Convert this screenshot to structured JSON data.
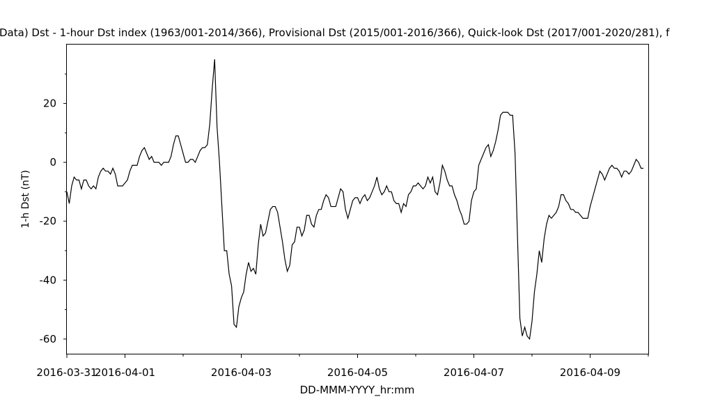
{
  "chart_data": {
    "type": "line",
    "title": "Data)  Dst - 1-hour Dst index (1963/001-2014/366), Provisional Dst (2015/001-2016/366), Quick-look Dst (2017/001-2020/281), f",
    "xlabel": "DD-MMM-YYYY_hr:mm",
    "ylabel": "1-h Dst (nT)",
    "ylim": [
      -65,
      40
    ],
    "xlim": [
      "2016-03-31T00:00",
      "2016-04-10T00:00"
    ],
    "grid": false,
    "y_ticks": [
      {
        "value": 20,
        "label": "20"
      },
      {
        "value": 0,
        "label": "0"
      },
      {
        "value": -20,
        "label": "-20"
      },
      {
        "value": -40,
        "label": "-40"
      },
      {
        "value": -60,
        "label": "-60"
      }
    ],
    "y_minor_ticks": [
      30,
      10,
      -10,
      -30,
      -50
    ],
    "x_ticks": [
      {
        "value": "2016-03-31",
        "label": "2016-03-31"
      },
      {
        "value": "2016-04-01",
        "label": "2016-04-01"
      },
      {
        "value": "2016-04-03",
        "label": "2016-04-03"
      },
      {
        "value": "2016-04-05",
        "label": "2016-04-05"
      },
      {
        "value": "2016-04-07",
        "label": "2016-04-07"
      },
      {
        "value": "2016-04-09",
        "label": "2016-04-09"
      }
    ],
    "x_minor_ticks": [
      "2016-04-02",
      "2016-04-04",
      "2016-04-06",
      "2016-04-08",
      "2016-04-10"
    ],
    "series": [
      {
        "color": "#000000",
        "start": "2016-03-31T00:00",
        "interval_hours": 1,
        "values": [
          -10,
          -14,
          -8,
          -5,
          -6,
          -6,
          -9,
          -6,
          -6,
          -8,
          -9,
          -8,
          -9,
          -5,
          -3,
          -2,
          -3,
          -3,
          -4,
          -2,
          -4,
          -8,
          -8,
          -8,
          -7,
          -6,
          -3,
          -1,
          -1,
          -1,
          2,
          4,
          5,
          3,
          1,
          2,
          0,
          0,
          0,
          -1,
          0,
          0,
          0,
          2,
          6,
          9,
          9,
          6,
          3,
          0,
          0,
          1,
          1,
          0,
          2,
          4,
          5,
          5,
          6,
          13,
          25,
          35,
          12,
          0,
          -15,
          -30,
          -30,
          -38,
          -42,
          -55,
          -56,
          -49,
          -46,
          -44,
          -38,
          -34,
          -37,
          -36,
          -38,
          -28,
          -21,
          -25,
          -24,
          -20,
          -16,
          -15,
          -15,
          -17,
          -22,
          -27,
          -33,
          -37,
          -35,
          -28,
          -27,
          -22,
          -22,
          -25,
          -23,
          -18,
          -18,
          -21,
          -22,
          -18,
          -16,
          -16,
          -13,
          -11,
          -12,
          -15,
          -15,
          -15,
          -12,
          -9,
          -10,
          -16,
          -19,
          -16,
          -13,
          -12,
          -12,
          -14,
          -12,
          -11,
          -13,
          -12,
          -10,
          -8,
          -5,
          -9,
          -11,
          -10,
          -8,
          -10,
          -10,
          -13,
          -14,
          -14,
          -17,
          -14,
          -15,
          -11,
          -10,
          -8,
          -8,
          -7,
          -8,
          -9,
          -8,
          -5,
          -7,
          -5,
          -10,
          -11,
          -7,
          -1,
          -3,
          -6,
          -8,
          -8,
          -11,
          -13,
          -16,
          -18,
          -21,
          -21,
          -20,
          -13,
          -10,
          -9,
          -1,
          1,
          3,
          5,
          6,
          2,
          4,
          7,
          11,
          16,
          17,
          17,
          17,
          16,
          16,
          3,
          -25,
          -53,
          -59,
          -56,
          -59,
          -60,
          -54,
          -44,
          -38,
          -30,
          -34,
          -26,
          -21,
          -18,
          -19,
          -18,
          -17,
          -15,
          -11,
          -11,
          -13,
          -14,
          -16,
          -16,
          -17,
          -17,
          -18,
          -19,
          -19,
          -19,
          -15,
          -12,
          -9,
          -6,
          -3,
          -4,
          -6,
          -4,
          -2,
          -1,
          -2,
          -2,
          -3,
          -5,
          -3,
          -3,
          -4,
          -3,
          -1,
          1,
          0,
          -2,
          -2
        ]
      }
    ]
  }
}
